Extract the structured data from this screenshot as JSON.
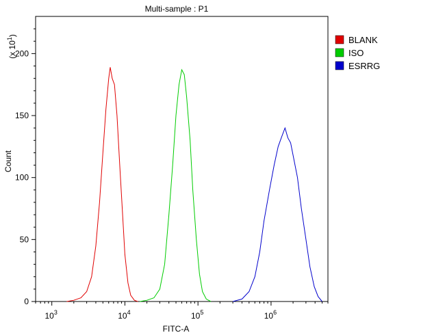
{
  "chart_data": {
    "type": "line",
    "title": "Multi-sample : P1",
    "xlabel": "FITC-A",
    "ylabel": "Count",
    "y_multiplier_prefix": "(x 10",
    "y_multiplier_exp": "1",
    "y_multiplier_suffix": ")",
    "x_scale": "log",
    "xlim": [
      600,
      6000000
    ],
    "ylim": [
      0,
      230
    ],
    "x_ticks": [
      {
        "value": 1000,
        "base": "10",
        "exp": "3"
      },
      {
        "value": 10000,
        "base": "10",
        "exp": "4"
      },
      {
        "value": 100000,
        "base": "10",
        "exp": "5"
      },
      {
        "value": 1000000,
        "base": "10",
        "exp": "6"
      }
    ],
    "y_ticks": [
      "0",
      "50",
      "100",
      "150",
      "200"
    ],
    "legend_position": "right",
    "series": [
      {
        "name": "BLANK",
        "color": "#e00000",
        "points": [
          [
            1600,
            0
          ],
          [
            2000,
            1
          ],
          [
            2500,
            3
          ],
          [
            3000,
            8
          ],
          [
            3500,
            20
          ],
          [
            4000,
            45
          ],
          [
            4500,
            80
          ],
          [
            5000,
            120
          ],
          [
            5500,
            155
          ],
          [
            6000,
            180
          ],
          [
            6300,
            189
          ],
          [
            6700,
            180
          ],
          [
            7200,
            175
          ],
          [
            7800,
            150
          ],
          [
            8500,
            110
          ],
          [
            9300,
            70
          ],
          [
            10000,
            38
          ],
          [
            11000,
            15
          ],
          [
            12000,
            5
          ],
          [
            13500,
            1
          ],
          [
            15000,
            0
          ]
        ]
      },
      {
        "name": "ISO",
        "color": "#00cc00",
        "points": [
          [
            16000,
            0
          ],
          [
            20000,
            1
          ],
          [
            25000,
            3
          ],
          [
            30000,
            10
          ],
          [
            35000,
            30
          ],
          [
            40000,
            70
          ],
          [
            45000,
            110
          ],
          [
            50000,
            150
          ],
          [
            55000,
            175
          ],
          [
            60000,
            187
          ],
          [
            65000,
            183
          ],
          [
            70000,
            165
          ],
          [
            78000,
            130
          ],
          [
            85000,
            90
          ],
          [
            95000,
            50
          ],
          [
            105000,
            22
          ],
          [
            115000,
            8
          ],
          [
            130000,
            2
          ],
          [
            150000,
            0
          ]
        ]
      },
      {
        "name": "ESRRG",
        "color": "#0000cc",
        "points": [
          [
            300000,
            0
          ],
          [
            400000,
            2
          ],
          [
            500000,
            8
          ],
          [
            600000,
            20
          ],
          [
            700000,
            40
          ],
          [
            800000,
            65
          ],
          [
            950000,
            90
          ],
          [
            1100000,
            110
          ],
          [
            1250000,
            125
          ],
          [
            1400000,
            133
          ],
          [
            1550000,
            140
          ],
          [
            1700000,
            132
          ],
          [
            1850000,
            128
          ],
          [
            2000000,
            118
          ],
          [
            2300000,
            100
          ],
          [
            2600000,
            75
          ],
          [
            3000000,
            50
          ],
          [
            3400000,
            28
          ],
          [
            3900000,
            12
          ],
          [
            4400000,
            4
          ],
          [
            5000000,
            0
          ]
        ]
      }
    ]
  }
}
